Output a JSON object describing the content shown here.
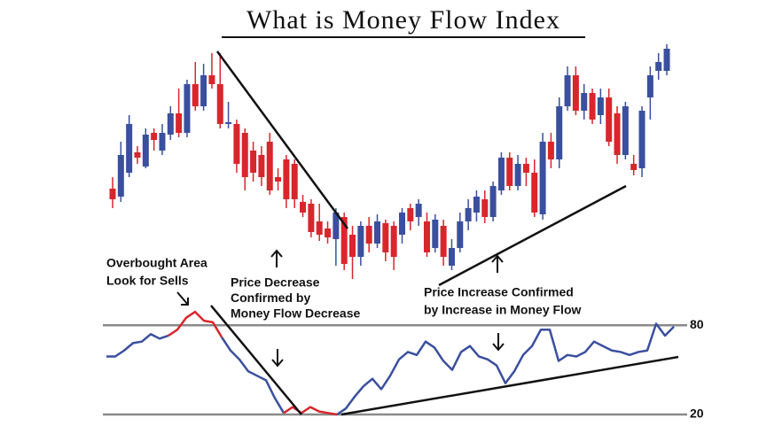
{
  "chart_data": [
    {
      "type": "candlestick",
      "title": "What is Money Flow Index",
      "up_color": "#3a4f9e",
      "down_color": "#d8262c",
      "open": [
        267,
        258,
        285,
        308,
        292,
        330,
        310,
        328,
        352,
        330,
        385,
        360,
        395,
        385,
        340,
        340,
        330,
        310,
        305,
        320,
        280,
        300,
        295,
        252,
        250,
        230,
        222,
        210,
        235,
        215,
        190,
        225,
        205,
        228,
        225,
        215,
        245,
        235,
        230,
        200,
        225,
        180,
        200,
        230,
        240,
        255,
        235,
        265,
        302,
        270,
        295,
        285,
        238,
        320,
        300,
        360,
        395,
        355,
        375,
        350,
        370,
        352,
        305,
        295,
        290,
        370,
        400,
        400
      ],
      "high": [
        280,
        320,
        350,
        315,
        335,
        335,
        340,
        360,
        380,
        390,
        410,
        408,
        420,
        420,
        365,
        345,
        335,
        320,
        315,
        330,
        290,
        305,
        300,
        260,
        255,
        250,
        230,
        245,
        240,
        225,
        230,
        235,
        238,
        232,
        230,
        245,
        250,
        255,
        240,
        238,
        232,
        210,
        240,
        255,
        265,
        265,
        275,
        308,
        308,
        305,
        302,
        300,
        330,
        330,
        370,
        405,
        405,
        385,
        380,
        380,
        380,
        360,
        365,
        305,
        360,
        405,
        420,
        430
      ],
      "low": [
        245,
        252,
        280,
        295,
        290,
        310,
        305,
        322,
        325,
        325,
        355,
        355,
        380,
        335,
        335,
        285,
        265,
        275,
        270,
        260,
        265,
        245,
        245,
        235,
        212,
        208,
        205,
        180,
        175,
        165,
        180,
        195,
        200,
        185,
        175,
        205,
        220,
        225,
        190,
        195,
        180,
        175,
        195,
        220,
        230,
        228,
        230,
        260,
        265,
        265,
        270,
        235,
        232,
        290,
        290,
        355,
        350,
        345,
        340,
        340,
        315,
        295,
        300,
        282,
        280,
        345,
        390,
        395
      ],
      "close": [
        255,
        305,
        340,
        302,
        328,
        322,
        330,
        352,
        330,
        385,
        360,
        395,
        385,
        340,
        342,
        295,
        280,
        285,
        280,
        265,
        275,
        255,
        255,
        240,
        218,
        215,
        212,
        240,
        182,
        190,
        225,
        205,
        230,
        195,
        190,
        240,
        230,
        250,
        195,
        232,
        190,
        200,
        230,
        245,
        258,
        235,
        270,
        302,
        270,
        295,
        285,
        240,
        320,
        300,
        360,
        395,
        355,
        375,
        345,
        370,
        320,
        305,
        360,
        288,
        355,
        395,
        410,
        425
      ],
      "annotations": [
        [
          "Overbought Area",
          "Look for Sells"
        ],
        [
          "Price Decrease",
          "Confirmed by",
          "Money Flow Decrease"
        ],
        [
          "Price Increase Confirmed",
          "by Increase in Money Flow"
        ]
      ]
    },
    {
      "type": "line",
      "ylim": [
        20,
        95
      ],
      "yticks": [
        80,
        20
      ],
      "grid": true,
      "grid_color": "#8a8a8a",
      "series": [
        {
          "color": "#3a4f9e",
          "values": [
            59,
            59,
            63,
            68,
            69,
            74,
            71,
            73,
            null,
            null,
            null,
            null,
            null,
            72,
            63,
            57,
            49,
            46,
            43,
            31,
            21,
            null,
            null,
            null,
            null,
            null,
            20,
            24,
            32,
            39,
            44,
            37,
            46,
            57,
            62,
            60,
            69,
            65,
            56,
            50,
            62,
            66,
            59,
            57,
            53,
            41,
            49,
            60,
            66,
            77,
            77,
            56,
            60,
            59,
            62,
            69,
            66,
            63,
            62,
            60,
            62,
            63,
            81,
            73,
            79
          ]
        },
        {
          "color": "#d8262c",
          "values": [
            null,
            null,
            null,
            null,
            null,
            null,
            null,
            73,
            77,
            85,
            89,
            83,
            82,
            72,
            null,
            null,
            null,
            null,
            null,
            null,
            21,
            25,
            21,
            25,
            22,
            21,
            20,
            null,
            null,
            null,
            null,
            null,
            null,
            null,
            null,
            null,
            null,
            null,
            null,
            null,
            null,
            null,
            null,
            null,
            null,
            null,
            null,
            null,
            null,
            null,
            null,
            null,
            null,
            null,
            null,
            null,
            null,
            null,
            null,
            null,
            null,
            null,
            null,
            null,
            null
          ]
        }
      ]
    }
  ]
}
